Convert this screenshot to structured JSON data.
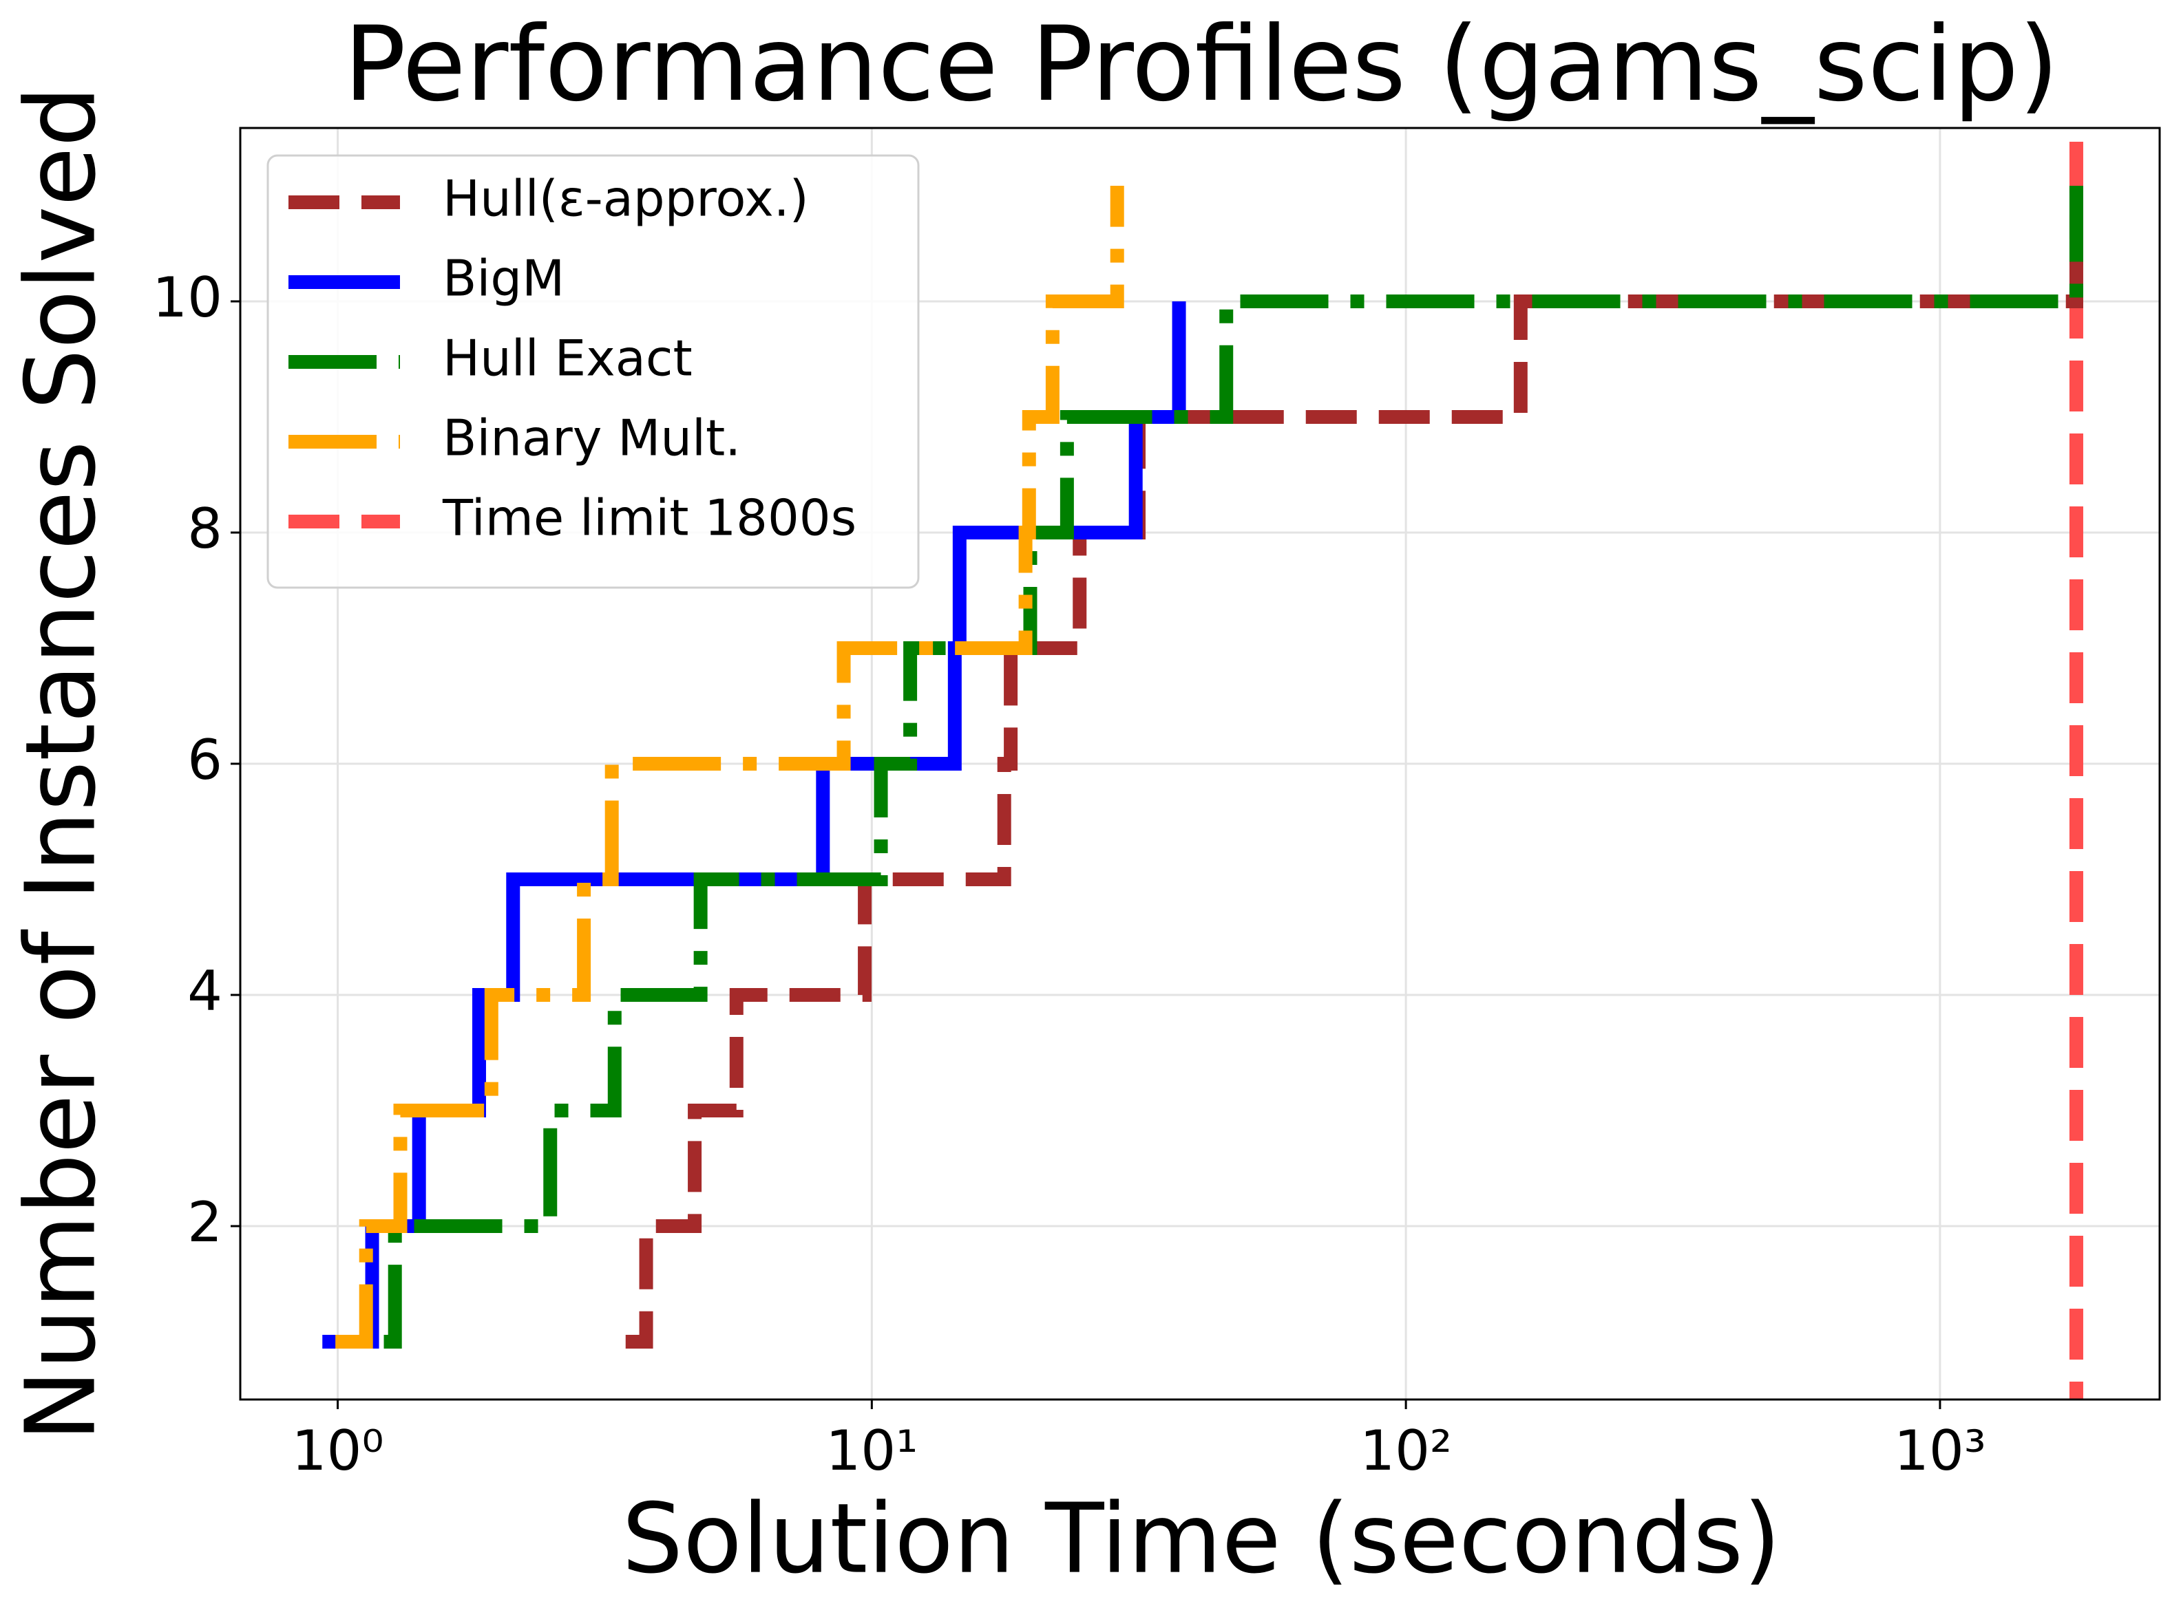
{
  "chart_data": {
    "type": "line",
    "step": "post",
    "title": "Performance Profiles (gams_scip)",
    "x_label": "Solution Time (seconds)",
    "y_label": "Number of Instances Solved",
    "x_scale": "log",
    "xlim": [
      0.657,
      2578
    ],
    "ylim": [
      0.5,
      11.5
    ],
    "xticks": [
      {
        "value": 1,
        "label": "10⁰"
      },
      {
        "value": 10,
        "label": "10¹"
      },
      {
        "value": 100,
        "label": "10²"
      },
      {
        "value": 1000,
        "label": "10³"
      }
    ],
    "yticks": [
      2,
      4,
      6,
      8,
      10
    ],
    "grid": true,
    "legend": "upper left",
    "series": [
      {
        "name": "Hull(ε-approx.)",
        "color": "#a52a2a",
        "dash": "dashed",
        "x": [
          3.46,
          3.78,
          4.66,
          5.58,
          9.7,
          17.7,
          18.2,
          24.5,
          31.6,
          164,
          1800
        ],
        "values": [
          1,
          2,
          3,
          4,
          5,
          6,
          7,
          8,
          9,
          10,
          11
        ]
      },
      {
        "name": "BigM",
        "color": "#0000ff",
        "dash": "solid",
        "x": [
          0.936,
          1.16,
          1.42,
          1.84,
          2.13,
          8.1,
          14.3,
          14.6,
          31.2,
          37.6
        ],
        "values": [
          1,
          2,
          3,
          4,
          5,
          6,
          7,
          8,
          9,
          10
        ]
      },
      {
        "name": "Hull Exact",
        "color": "#008000",
        "dash": "dashdot",
        "x": [
          1.22,
          1.28,
          2.5,
          3.3,
          4.78,
          10.4,
          11.8,
          19.8,
          23.2,
          46.1,
          1800
        ],
        "values": [
          1,
          2,
          3,
          4,
          5,
          6,
          7,
          8,
          9,
          10,
          11
        ]
      },
      {
        "name": "Binary Mult.",
        "color": "#ffa500",
        "dash": "dashdot",
        "x": [
          0.99,
          1.13,
          1.31,
          1.94,
          2.89,
          3.26,
          8.86,
          19.4,
          19.7,
          21.8,
          28.8
        ],
        "values": [
          1,
          2,
          3,
          4,
          5,
          6,
          7,
          8,
          9,
          10,
          11
        ]
      }
    ],
    "reference_line": {
      "name": "Time limit 1800s",
      "x": 1800,
      "color": "#ff4d4d",
      "dash": "dashed"
    }
  }
}
